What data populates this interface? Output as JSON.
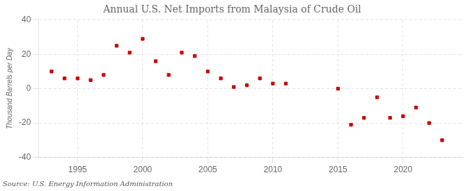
{
  "chart_data": {
    "type": "scatter",
    "title": "Annual U.S. Net Imports from Malaysia of Crude Oil",
    "ylabel": "Thousand Barrels per Day",
    "annotations": [
      "Source: U.S. Energy Information Administration"
    ],
    "x": [
      1993,
      1994,
      1995,
      1996,
      1997,
      1998,
      1999,
      2000,
      2001,
      2002,
      2003,
      2004,
      2005,
      2006,
      2007,
      2008,
      2009,
      2010,
      2011,
      2015,
      2016,
      2017,
      2018,
      2019,
      2020,
      2021,
      2022,
      2023
    ],
    "values": [
      10,
      6,
      6,
      5,
      8,
      25,
      21,
      29,
      16,
      8,
      21,
      19,
      10,
      6,
      1,
      2,
      6,
      3,
      3,
      0,
      -21,
      -17,
      -5,
      -17,
      -16,
      -11,
      -20,
      -30
    ],
    "color": "#cc0000",
    "marker": "square",
    "xlim": [
      1992,
      2024.5
    ],
    "xticks": [
      1995,
      2000,
      2005,
      2010,
      2015,
      2020
    ],
    "ylim": [
      -40,
      40
    ],
    "yticks": [
      -40,
      -20,
      0,
      20,
      40
    ],
    "grid": true
  }
}
